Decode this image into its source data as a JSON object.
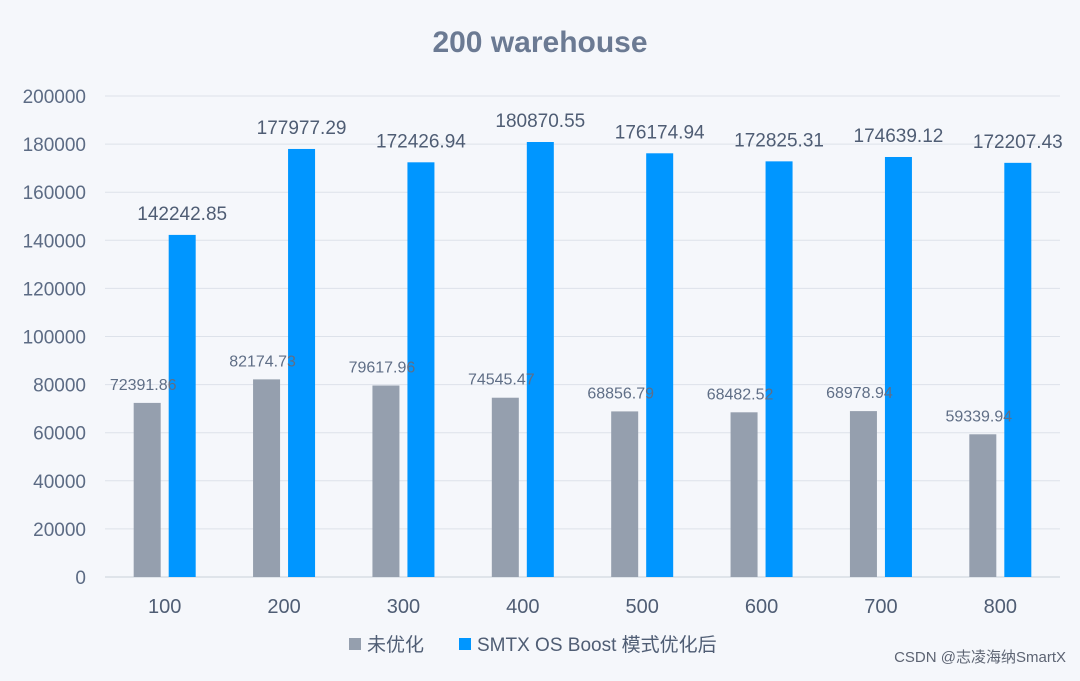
{
  "chart_data": {
    "type": "bar",
    "title": "200 warehouse",
    "xlabel": "",
    "ylabel": "",
    "ylim": [
      0,
      200000
    ],
    "yticks": [
      0,
      20000,
      40000,
      60000,
      80000,
      100000,
      120000,
      140000,
      160000,
      180000,
      200000
    ],
    "categories": [
      "100",
      "200",
      "300",
      "400",
      "500",
      "600",
      "700",
      "800"
    ],
    "series": [
      {
        "name": "未优化",
        "color": "#959fae",
        "values": [
          72391.86,
          82174.73,
          79617.96,
          74545.47,
          68856.79,
          68482.52,
          68978.94,
          59339.94
        ],
        "labels": [
          "72391.86",
          "82174.73",
          "79617.96",
          "74545.47",
          "68856.79",
          "68482.52",
          "68978.94",
          "59339.94"
        ]
      },
      {
        "name": "SMTX OS Boost 模式优化后",
        "color": "#0096ff",
        "values": [
          142242.85,
          177977.29,
          172426.94,
          180870.55,
          176174.94,
          172825.31,
          174639.12,
          172207.43
        ],
        "labels": [
          "142242.85",
          "177977.29",
          "172426.94",
          "180870.55",
          "176174.94",
          "172825.31",
          "174639.12",
          "172207.43"
        ]
      }
    ],
    "grid": true,
    "legend_position": "bottom-center"
  },
  "watermark": "CSDN @志凌海纳SmartX"
}
